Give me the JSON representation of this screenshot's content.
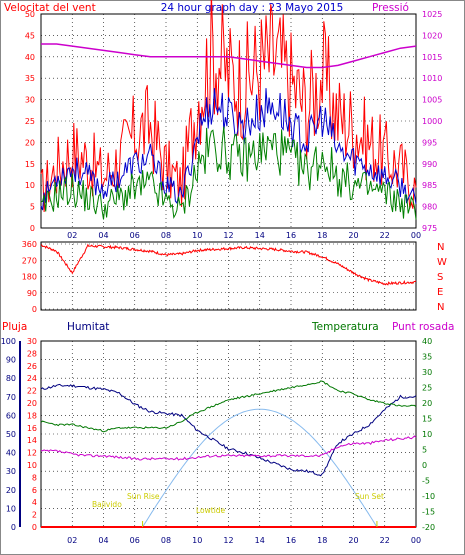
{
  "header": {
    "left_title": "Velocitat del vent",
    "center_title": "24 hour graph day : 23 Mayo 2015",
    "right_title": "Pressió"
  },
  "x_ticks": [
    "02",
    "04",
    "06",
    "08",
    "10",
    "12",
    "14",
    "16",
    "18",
    "20",
    "22",
    "00"
  ],
  "colors": {
    "wind_gust": "#ff0000",
    "wind_speed": "#0000cc",
    "wind_avg": "#008000",
    "pressure": "#cc00cc",
    "wind_dir": "#ff0000",
    "rain": "#ff0000",
    "humidity": "#000080",
    "temperature": "#007700",
    "dewpoint": "#cc00cc",
    "sun": "#88bbee",
    "sun_label": "#cccc00",
    "grid": "#000000"
  },
  "chart_data": [
    {
      "type": "line",
      "title": "24 hour graph day : 23 Mayo 2015",
      "ylabel_left": "Velocitat del vent",
      "ylabel_right": "Pressió",
      "ylim_left": [
        0,
        50
      ],
      "ylim_right": [
        975,
        1025
      ],
      "y_ticks_left": [
        "0",
        "5",
        "10",
        "15",
        "20",
        "25",
        "30",
        "35",
        "40",
        "45",
        "50"
      ],
      "y_ticks_right": [
        "975",
        "980",
        "985",
        "990",
        "995",
        "1000",
        "1005",
        "1010",
        "1015",
        "1020",
        "1025"
      ],
      "x": [
        "00",
        "01",
        "02",
        "03",
        "04",
        "05",
        "06",
        "07",
        "08",
        "09",
        "10",
        "11",
        "12",
        "13",
        "14",
        "15",
        "16",
        "17",
        "18",
        "19",
        "20",
        "21",
        "22",
        "23",
        "00"
      ],
      "series": [
        {
          "name": "gust",
          "axis": "left",
          "values": [
            8,
            14,
            18,
            16,
            12,
            16,
            22,
            24,
            14,
            10,
            30,
            42,
            36,
            34,
            38,
            40,
            34,
            28,
            36,
            26,
            24,
            20,
            17,
            14,
            9
          ]
        },
        {
          "name": "speed",
          "axis": "left",
          "values": [
            6,
            12,
            14,
            12,
            9,
            12,
            15,
            16,
            10,
            7,
            22,
            30,
            26,
            24,
            27,
            29,
            24,
            20,
            26,
            18,
            16,
            14,
            12,
            10,
            6
          ]
        },
        {
          "name": "average",
          "axis": "left",
          "values": [
            4,
            8,
            9,
            7,
            5,
            7,
            9,
            10,
            6,
            4,
            14,
            20,
            17,
            16,
            18,
            19,
            16,
            13,
            17,
            12,
            10,
            9,
            8,
            6,
            4
          ]
        },
        {
          "name": "pressure",
          "axis": "right",
          "values": [
            1018,
            1018,
            1017.5,
            1017,
            1016.5,
            1016,
            1015.5,
            1015,
            1015,
            1015,
            1015,
            1015,
            1015,
            1014.5,
            1014,
            1013.5,
            1013,
            1012.5,
            1012.5,
            1013,
            1014,
            1015,
            1016,
            1017,
            1017.5
          ]
        }
      ]
    },
    {
      "type": "line",
      "title": "",
      "y_ticks": [
        "0",
        "90",
        "180",
        "270",
        "360"
      ],
      "ylim": [
        0,
        360
      ],
      "compass_labels": [
        "N",
        "W",
        "S",
        "E",
        "N"
      ],
      "x": [
        "00",
        "01",
        "02",
        "03",
        "04",
        "05",
        "06",
        "07",
        "08",
        "09",
        "10",
        "11",
        "12",
        "13",
        "14",
        "15",
        "16",
        "17",
        "18",
        "19",
        "20",
        "21",
        "22",
        "23",
        "00"
      ],
      "series": [
        {
          "name": "direction",
          "values": [
            355,
            320,
            200,
            350,
            345,
            340,
            330,
            320,
            300,
            305,
            325,
            330,
            335,
            340,
            335,
            330,
            320,
            315,
            290,
            250,
            200,
            160,
            140,
            145,
            150
          ]
        }
      ]
    },
    {
      "type": "line",
      "legend": [
        "Pluja",
        "Humitat",
        "Temperatura",
        "Punt rosada"
      ],
      "ylim_rain": [
        0,
        30
      ],
      "ylim_humidity": [
        0,
        100
      ],
      "ylim_temperature": [
        -20,
        40
      ],
      "y_ticks_rain": [
        "0",
        "2",
        "4",
        "6",
        "8",
        "10",
        "12",
        "14",
        "16",
        "18",
        "20",
        "22",
        "24",
        "26",
        "28",
        "30"
      ],
      "y_ticks_humidity": [
        "0",
        "10",
        "20",
        "30",
        "40",
        "50",
        "60",
        "70",
        "80",
        "90",
        "100"
      ],
      "y_ticks_temperature": [
        "-20",
        "-15",
        "-10",
        "-5",
        "0",
        "5",
        "10",
        "15",
        "20",
        "25",
        "30",
        "35",
        "40"
      ],
      "x": [
        "00",
        "01",
        "02",
        "03",
        "04",
        "05",
        "06",
        "07",
        "08",
        "09",
        "10",
        "11",
        "12",
        "13",
        "14",
        "15",
        "16",
        "17",
        "18",
        "19",
        "20",
        "21",
        "22",
        "23",
        "00"
      ],
      "series": [
        {
          "name": "Humitat",
          "values": [
            74,
            76,
            76,
            75,
            74,
            72,
            66,
            62,
            61,
            60,
            52,
            47,
            42,
            40,
            37,
            34,
            31,
            30,
            28,
            45,
            50,
            55,
            63,
            70,
            70
          ]
        },
        {
          "name": "Temperatura",
          "values": [
            14,
            13,
            13,
            12,
            11,
            12,
            12,
            12,
            12,
            14,
            17,
            19,
            21,
            22,
            23,
            24,
            25,
            26,
            27,
            24,
            23,
            21,
            20,
            19,
            19
          ]
        },
        {
          "name": "Punt rosada",
          "values": [
            4.5,
            4.5,
            3.5,
            3,
            3,
            2.5,
            2,
            2,
            2,
            2,
            2.5,
            3,
            3,
            3,
            3,
            3,
            3,
            3,
            3,
            6,
            7,
            7,
            8,
            8.5,
            9
          ]
        },
        {
          "name": "Pluja",
          "values": [
            0,
            0,
            0,
            0,
            0,
            0,
            0,
            0,
            0,
            0,
            0,
            0,
            0,
            0,
            0,
            0,
            0,
            0,
            0,
            0,
            0,
            0,
            0,
            0,
            0
          ]
        }
      ],
      "sun_curve": {
        "rise_hour": 6.5,
        "set_hour": 21.5,
        "peak_hour": 14,
        "peak_temp": 18
      },
      "annotations": [
        "Bajivido",
        "Sun Rise",
        "Lowtide",
        "Sun Set"
      ]
    }
  ]
}
